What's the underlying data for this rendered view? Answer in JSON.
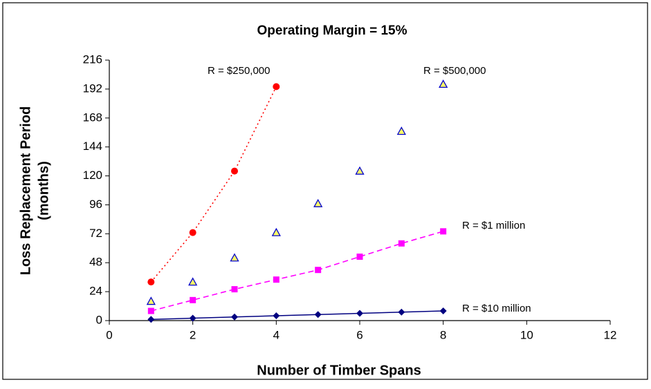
{
  "chart_data": {
    "type": "scatter",
    "title": "Operating Margin = 15%",
    "x_label": "Number of Timber Spans",
    "y_label": [
      "Loss Replacement Period",
      "(months)"
    ],
    "xlim": [
      0,
      12
    ],
    "xticks": [
      0,
      2,
      4,
      6,
      8,
      10,
      12
    ],
    "ylim": [
      0,
      216
    ],
    "yticks": [
      0,
      24,
      48,
      72,
      96,
      120,
      144,
      168,
      192,
      216
    ],
    "series": [
      {
        "name": "R = $250,000",
        "color": "#ff0000",
        "marker": "circle",
        "line": "dotted",
        "x": [
          1,
          2,
          3,
          4
        ],
        "values": [
          32,
          73,
          124,
          194
        ]
      },
      {
        "name": "R = $500,000",
        "color": "#ffff66",
        "edge": "#0000cc",
        "marker": "triangle",
        "line": null,
        "x": [
          1,
          2,
          3,
          4,
          5,
          6,
          7,
          8
        ],
        "values": [
          16,
          32,
          52,
          73,
          97,
          124,
          157,
          196
        ]
      },
      {
        "name": "R = $1 million",
        "color": "#ff00ff",
        "marker": "square",
        "line": "dashed",
        "x": [
          1,
          2,
          3,
          4,
          5,
          6,
          7,
          8
        ],
        "values": [
          8,
          17,
          26,
          34,
          42,
          53,
          64,
          74
        ]
      },
      {
        "name": "R = $10 million",
        "color": "#000080",
        "marker": "diamond",
        "line": "solid",
        "x": [
          1,
          2,
          3,
          4,
          5,
          6,
          7,
          8
        ],
        "values": [
          1,
          2,
          3,
          4,
          5,
          6,
          7,
          8
        ]
      }
    ]
  }
}
